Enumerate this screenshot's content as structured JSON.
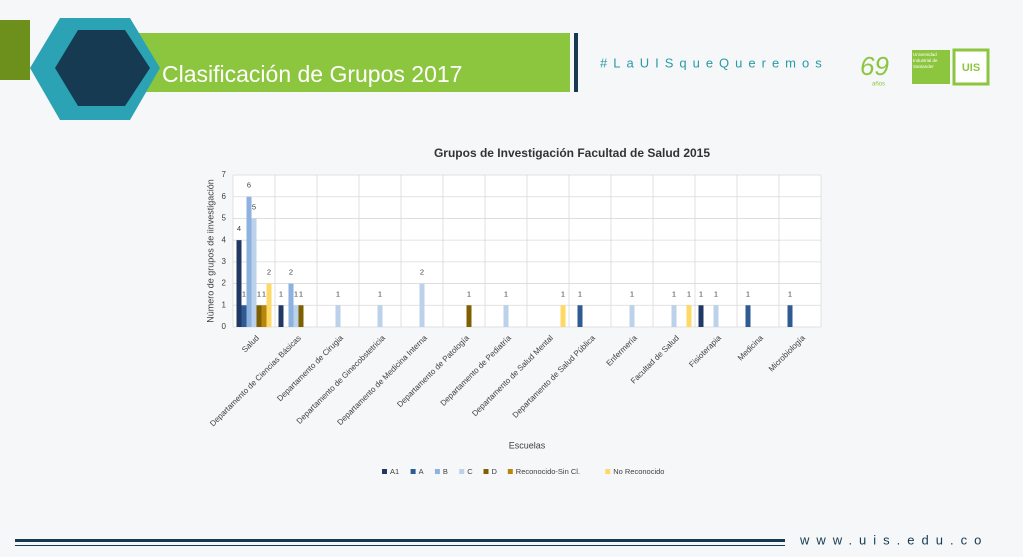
{
  "header": {
    "title": "Clasificación de Grupos 2017",
    "hashtag": "#LaUISqueQueremos",
    "logo_number": "69",
    "logo_years": "años",
    "logo_university": "Universidad Industrial de Santander",
    "logo_mark": "UIS"
  },
  "footer": {
    "url": "www.uis.edu.co"
  },
  "chart_data": {
    "type": "bar",
    "title": "Grupos de Investigación Facultad de Salud 2015",
    "x_label": "Escuelas",
    "y_label": "Número de grupos de iinvestigación",
    "categories": [
      "Salud",
      "Departamento de Ciencias Básicas",
      "Departamento de Cirugia",
      "Departamento de Ginecobstetricia",
      "Departamento de Medicina Interna",
      "Departamento de Patología",
      "Departamento de Pediatría",
      "Departamento de Salud Mental",
      "Departamento de Salud Pública",
      "Enfermería",
      "Facultad de Salud",
      "Fisioterapia",
      "Medicina",
      "Microbiología"
    ],
    "series": [
      {
        "name": "A1",
        "color": "#203864",
        "values": [
          4,
          1,
          null,
          null,
          null,
          null,
          null,
          null,
          null,
          null,
          null,
          1,
          null,
          null
        ]
      },
      {
        "name": "A",
        "color": "#2e5b94",
        "values": [
          1,
          null,
          null,
          null,
          null,
          null,
          null,
          null,
          1,
          null,
          null,
          null,
          1,
          1
        ]
      },
      {
        "name": "B",
        "color": "#8eb2e0",
        "values": [
          6,
          2,
          null,
          null,
          null,
          null,
          null,
          null,
          null,
          null,
          null,
          null,
          null,
          null
        ]
      },
      {
        "name": "C",
        "color": "#bcd2ea",
        "values": [
          5,
          1,
          1,
          1,
          2,
          null,
          1,
          null,
          null,
          1,
          1,
          1,
          null,
          null
        ]
      },
      {
        "name": "D",
        "color": "#7f6000",
        "values": [
          1,
          1,
          null,
          null,
          null,
          1,
          null,
          null,
          null,
          null,
          null,
          null,
          null,
          null
        ]
      },
      {
        "name": "Reconocido-Sin Cl.",
        "color": "#b8860b",
        "values": [
          1,
          null,
          null,
          null,
          null,
          null,
          null,
          null,
          null,
          null,
          null,
          null,
          null,
          null
        ]
      },
      {
        "name": "No Reconocido",
        "color": "#ffd966",
        "values": [
          2,
          null,
          null,
          null,
          null,
          null,
          null,
          1,
          null,
          null,
          1,
          null,
          null,
          null
        ]
      }
    ],
    "ylim": [
      0,
      7
    ],
    "yticks": [
      0,
      1,
      2,
      3,
      4,
      5,
      6,
      7
    ],
    "grid": true,
    "legend": "bottom"
  }
}
